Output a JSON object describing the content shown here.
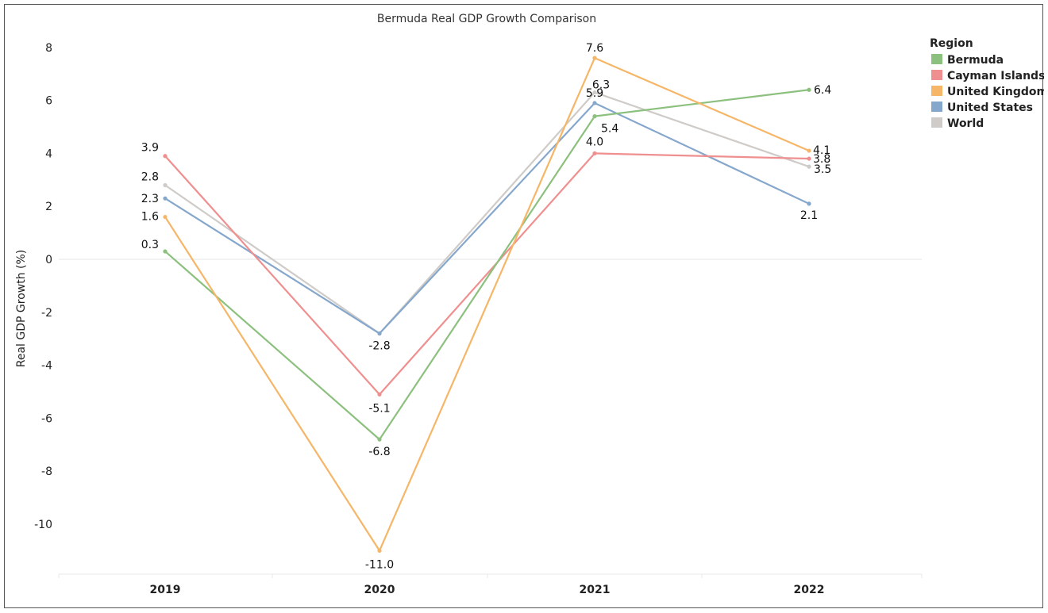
{
  "chart_data": {
    "type": "line",
    "title": "Bermuda Real GDP Growth Comparison",
    "xlabel": "",
    "ylabel": "Real GDP Growth (%)",
    "x": [
      "2019",
      "2020",
      "2021",
      "2022"
    ],
    "ylim": [
      -11.5,
      8.5
    ],
    "yticks": [
      8,
      6,
      4,
      2,
      0,
      -2,
      -4,
      -6,
      -8,
      -10
    ],
    "zero_line": true,
    "legend": {
      "title": "Region",
      "position": "top-right"
    },
    "series": [
      {
        "name": "Bermuda",
        "color": "#8cc07e",
        "values": [
          0.3,
          -6.8,
          5.4,
          6.4
        ],
        "label_text": [
          "0.3",
          "-6.8",
          "5.4",
          "6.4"
        ]
      },
      {
        "name": "Cayman Islands",
        "color": "#ef8f8f",
        "values": [
          3.9,
          -5.1,
          4.0,
          3.8
        ],
        "label_text": [
          "3.9",
          "-5.1",
          "4.0",
          "3.8"
        ]
      },
      {
        "name": "United Kingdom",
        "color": "#f5b668",
        "values": [
          1.6,
          -11.0,
          7.6,
          4.1
        ],
        "label_text": [
          "1.6",
          "-11.0",
          "7.6",
          "4.1"
        ]
      },
      {
        "name": "United States",
        "color": "#86a7cc",
        "values": [
          2.3,
          -2.8,
          5.9,
          2.1
        ],
        "label_text": [
          "2.3",
          "-2.8",
          "5.9",
          "2.1"
        ]
      },
      {
        "name": "World",
        "color": "#cfcbc8",
        "values": [
          2.8,
          -2.8,
          6.3,
          3.5
        ],
        "label_text": [
          "2.8",
          "",
          "6.3",
          "3.5"
        ]
      }
    ]
  }
}
